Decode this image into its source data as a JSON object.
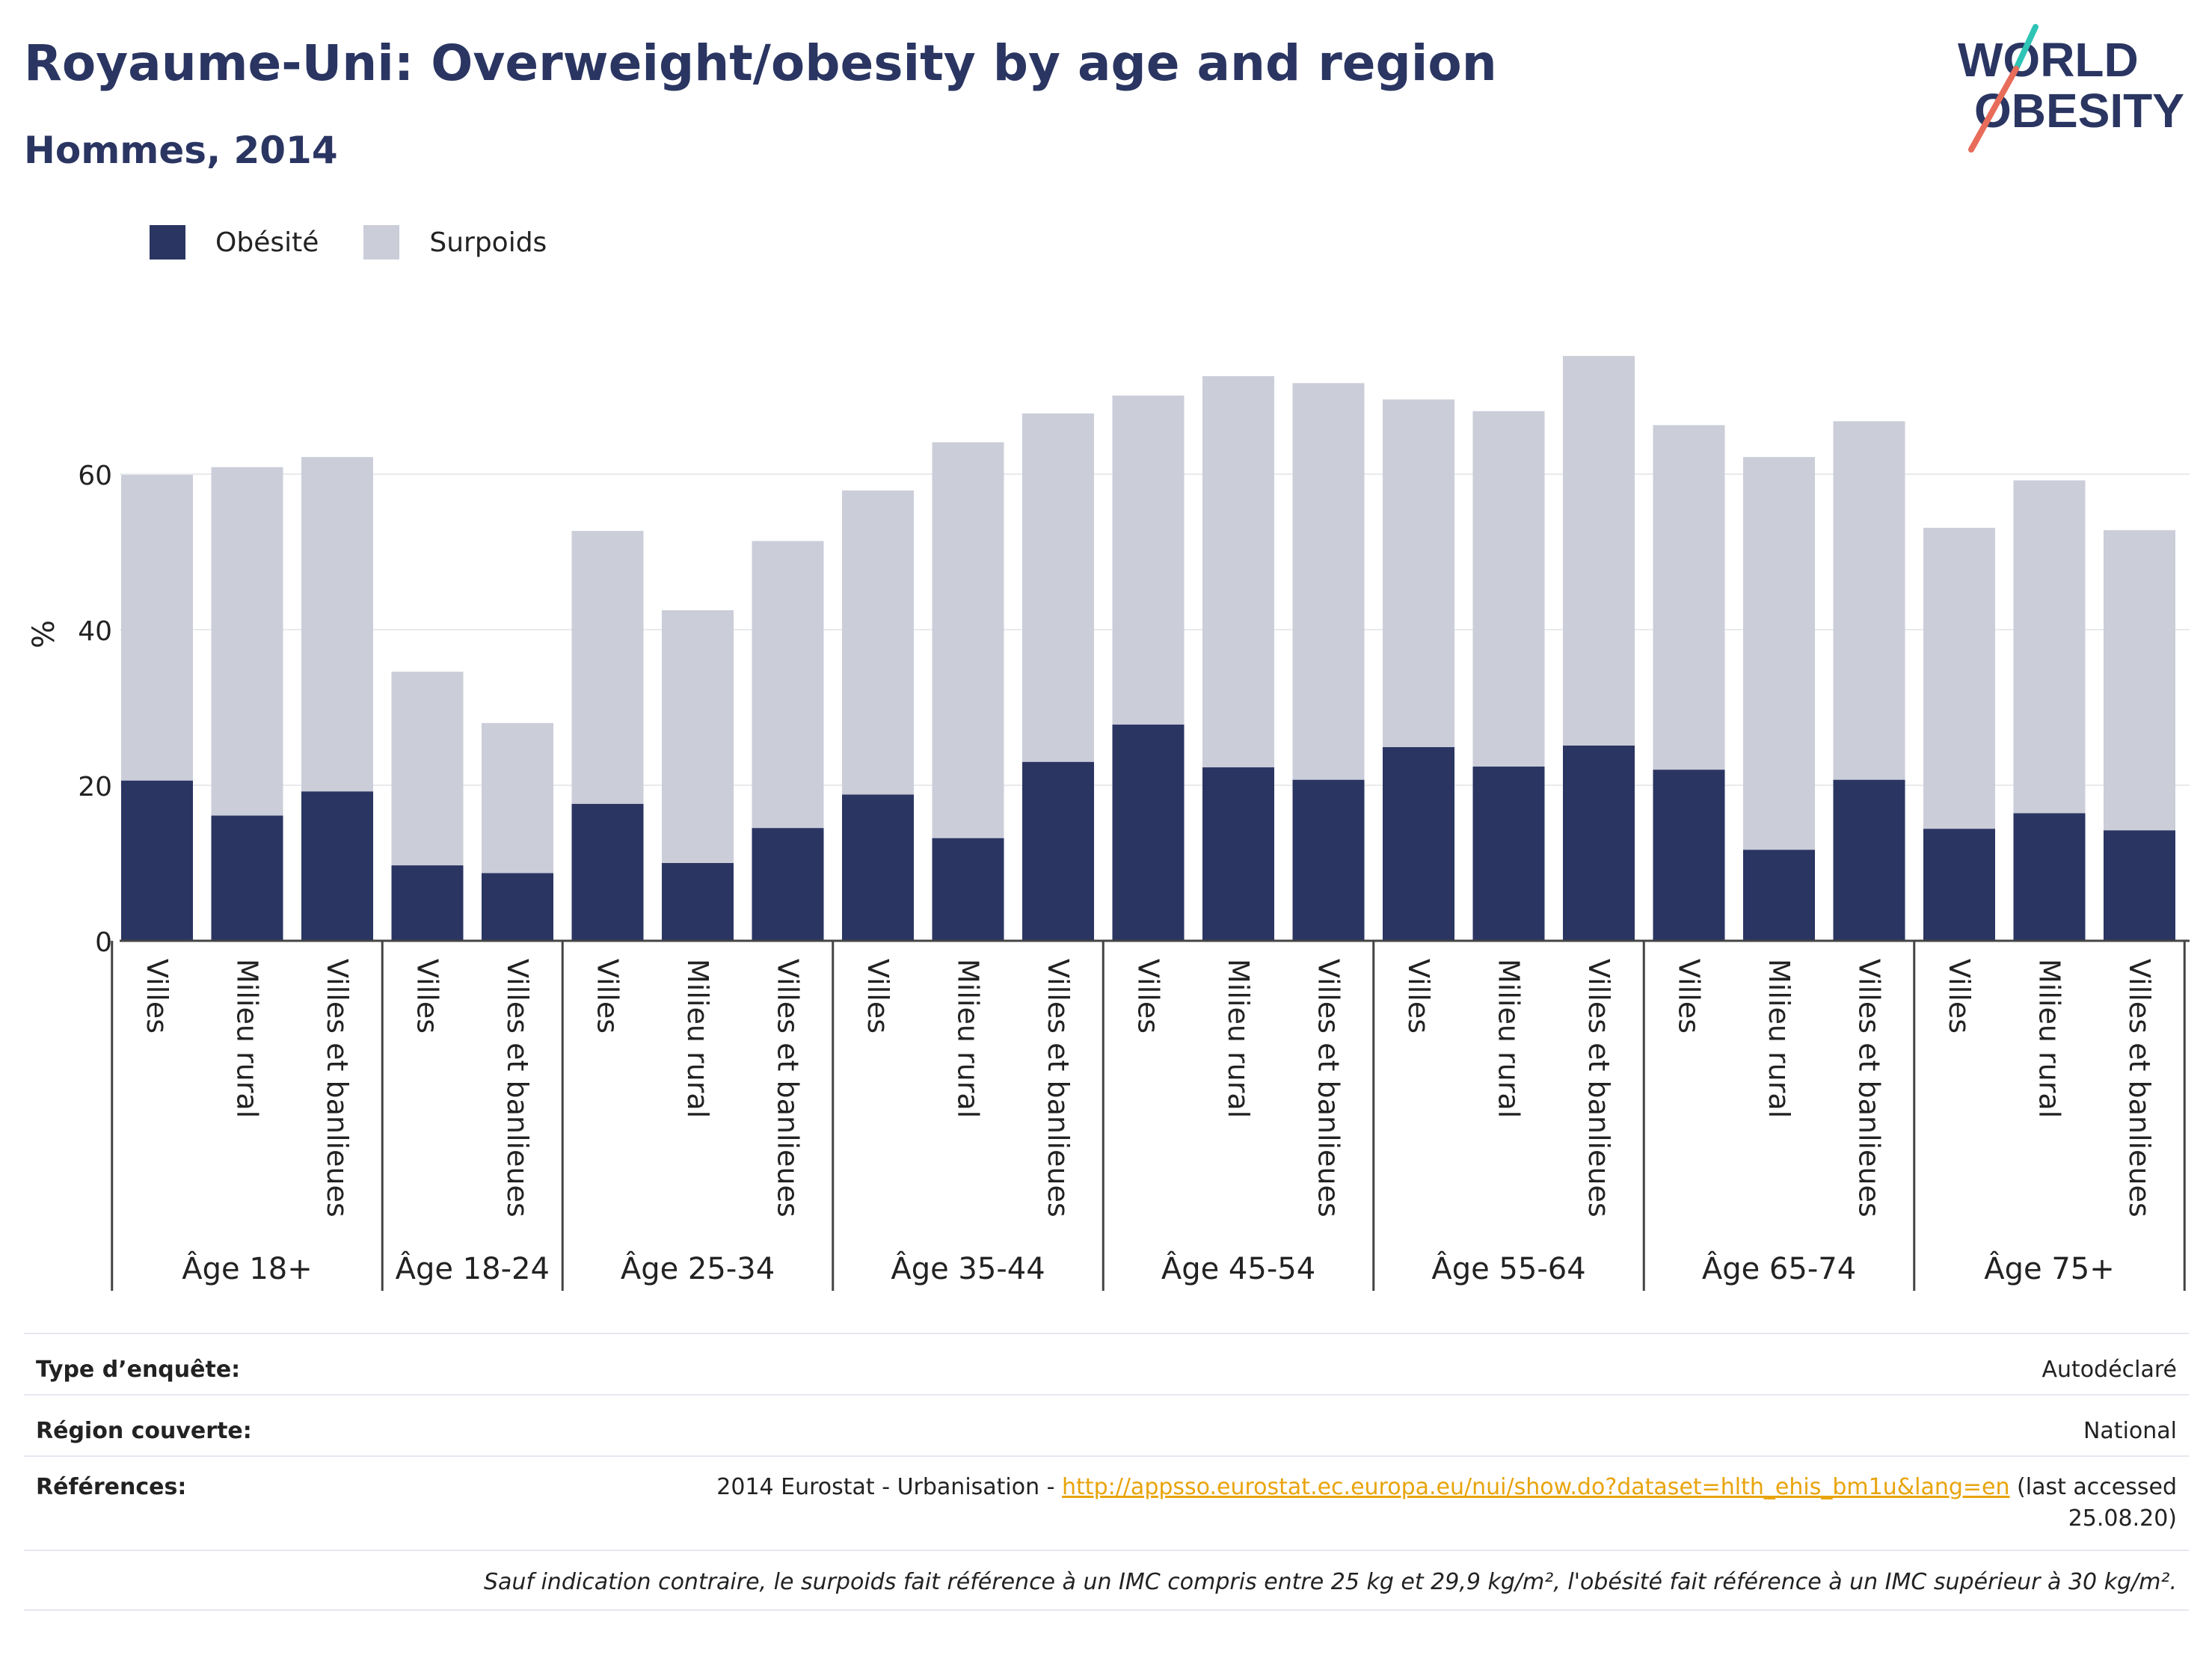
{
  "header": {
    "title": "Royaume-Uni: Overweight/obesity by age and region",
    "subtitle": "Hommes, 2014"
  },
  "logo": {
    "line1": "WORLD",
    "line2": "OBESITY"
  },
  "legend": [
    {
      "label": "Obésité",
      "color": "#2a3562"
    },
    {
      "label": "Surpoids",
      "color": "#cbcdd9"
    }
  ],
  "chart_data": {
    "type": "bar",
    "stacked": true,
    "ylabel": "%",
    "ylim": [
      0,
      80
    ],
    "yticks": [
      0,
      20,
      40,
      60
    ],
    "grid": true,
    "legend_position": "top-left",
    "groups": [
      {
        "label": "Âge 18+",
        "categories": [
          "Villes",
          "Milieu rural",
          "Villes et banlieues"
        ]
      },
      {
        "label": "Âge 18-24",
        "categories": [
          "Villes",
          "Villes et banlieues"
        ]
      },
      {
        "label": "Âge 25-34",
        "categories": [
          "Villes",
          "Milieu rural",
          "Villes et banlieues"
        ]
      },
      {
        "label": "Âge 35-44",
        "categories": [
          "Villes",
          "Milieu rural",
          "Villes et banlieues"
        ]
      },
      {
        "label": "Âge 45-54",
        "categories": [
          "Villes",
          "Milieu rural",
          "Villes et banlieues"
        ]
      },
      {
        "label": "Âge 55-64",
        "categories": [
          "Villes",
          "Milieu rural",
          "Villes et banlieues"
        ]
      },
      {
        "label": "Âge 65-74",
        "categories": [
          "Villes",
          "Milieu rural",
          "Villes et banlieues"
        ]
      },
      {
        "label": "Âge 75+",
        "categories": [
          "Villes",
          "Milieu rural",
          "Villes et banlieues"
        ]
      }
    ],
    "series": [
      {
        "name": "Obésité",
        "color": "#2a3562",
        "values": [
          20.6,
          16.1,
          19.2,
          9.7,
          8.7,
          17.6,
          10.0,
          14.5,
          18.8,
          13.2,
          23.0,
          27.8,
          22.3,
          20.7,
          24.9,
          22.4,
          25.1,
          22.0,
          11.7,
          20.7,
          14.4,
          16.4,
          14.2
        ]
      },
      {
        "name": "Surpoids",
        "color": "#cbcdd9",
        "values": [
          39.3,
          44.8,
          43.0,
          24.9,
          19.3,
          35.1,
          32.5,
          36.9,
          39.1,
          50.9,
          44.8,
          42.3,
          50.3,
          51.0,
          44.7,
          45.7,
          50.1,
          44.3,
          50.5,
          46.1,
          38.7,
          42.8,
          38.6
        ]
      }
    ]
  },
  "info": {
    "survey_type_label": "Type d’enquête:",
    "survey_type_value": "Autodéclaré",
    "region_label": "Région couverte:",
    "region_value": "National",
    "references_label": "Références:",
    "references_prefix": "2014 Eurostat - Urbanisation - ",
    "references_link": "http://appsso.eurostat.ec.europa.eu/nui/show.do?dataset=hlth_ehis_bm1u&lang=en",
    "references_suffix_1": " (last accessed",
    "references_suffix_2": "25.08.20)",
    "footnote": "Sauf indication contraire, le surpoids fait référence à un IMC compris entre 25 kg et 29,9 kg/m², l'obésité fait référence à un IMC supérieur à 30 kg/m²."
  }
}
